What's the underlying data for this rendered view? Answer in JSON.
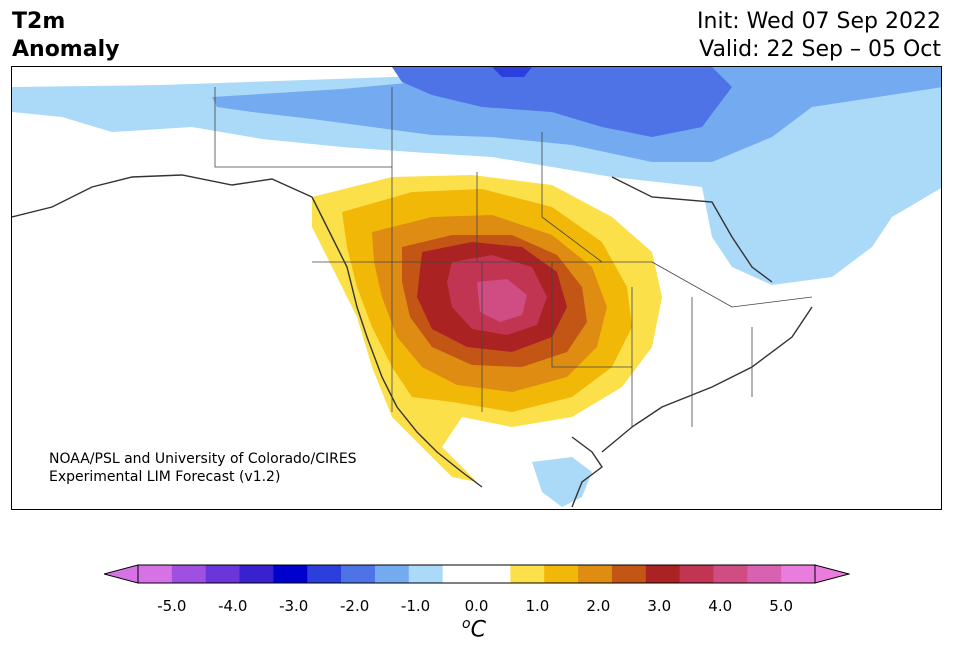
{
  "title": {
    "variable_line1": "T2m",
    "variable_line2": "Anomaly",
    "init": "Init: Wed 07 Sep 2022",
    "valid": "Valid: 22 Sep – 05 Oct"
  },
  "credit": {
    "line1": "NOAA/PSL and University of Colorado/CIRES",
    "line2": "Experimental LIM Forecast (v1.2)"
  },
  "colorbar": {
    "ticks": [
      "-5.0",
      "-4.0",
      "-3.0",
      "-2.0",
      "-1.0",
      "0.0",
      "1.0",
      "2.0",
      "3.0",
      "4.0",
      "5.0"
    ],
    "unit_super": "o",
    "unit": "C",
    "colors": [
      "#d672e6",
      "#9f50e0",
      "#6a35d9",
      "#3a21cf",
      "#0000cc",
      "#2a3fdc",
      "#4d73e6",
      "#74aaf0",
      "#aadaf8",
      "#ffffff",
      "#ffffff",
      "#fbe04a",
      "#f2b808",
      "#de8d12",
      "#c35615",
      "#aa2222",
      "#c23552",
      "#cf4d82",
      "#d961b2",
      "#e97cdc"
    ],
    "extend_low_color": "#d672e6",
    "extend_high_color": "#e97cdc"
  },
  "map": {
    "region": "North America",
    "field": "2m temperature anomaly",
    "warm_center": "Northern Rockies / High Plains",
    "cool_region": "Canadian Arctic and Hudson Bay"
  }
}
